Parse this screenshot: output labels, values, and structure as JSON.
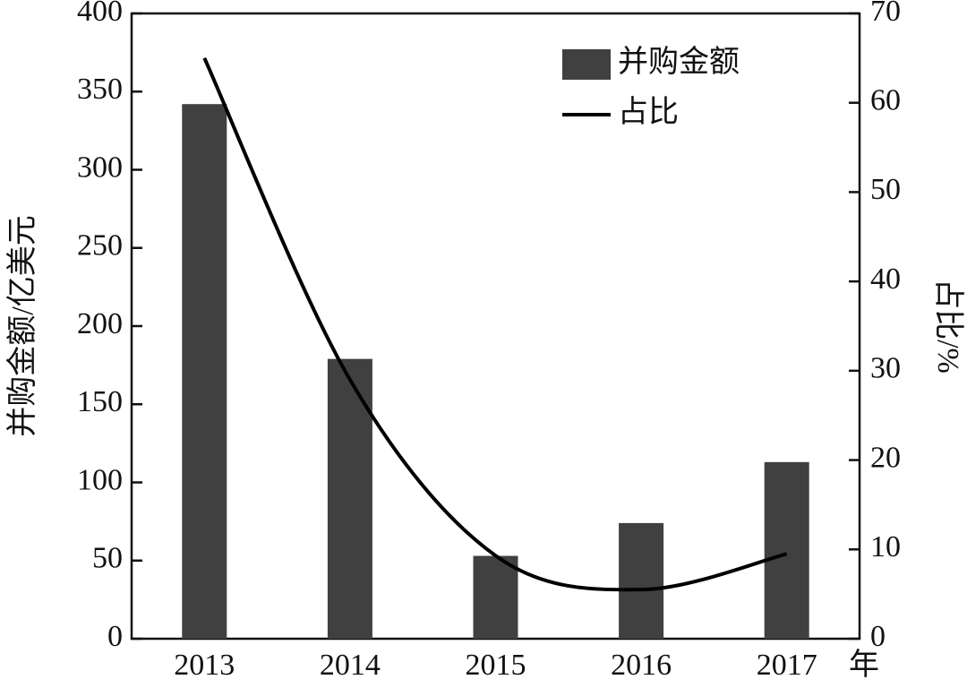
{
  "chart_data": {
    "type": "bar",
    "categories": [
      "2013",
      "2014",
      "2015",
      "2016",
      "2017"
    ],
    "xlabel": "年",
    "ylabel": "并购金额/亿美元",
    "y2label": "占比/%",
    "series": [
      {
        "name": "并购金额",
        "color": "#404040",
        "values": [
          342,
          179,
          53,
          74,
          113
        ]
      },
      {
        "name": "占比",
        "color": "#000000",
        "type": "line",
        "smooth": true,
        "axis": "y2",
        "values": [
          65,
          29,
          9.3,
          5.5,
          9.5
        ]
      }
    ],
    "ylim": [
      0,
      400
    ],
    "yticks": [
      0,
      50,
      100,
      150,
      200,
      250,
      300,
      350,
      400
    ],
    "y2lim": [
      0,
      70
    ],
    "y2ticks": [
      0,
      10,
      20,
      30,
      40,
      50,
      60,
      70
    ],
    "legend": "top-right"
  }
}
